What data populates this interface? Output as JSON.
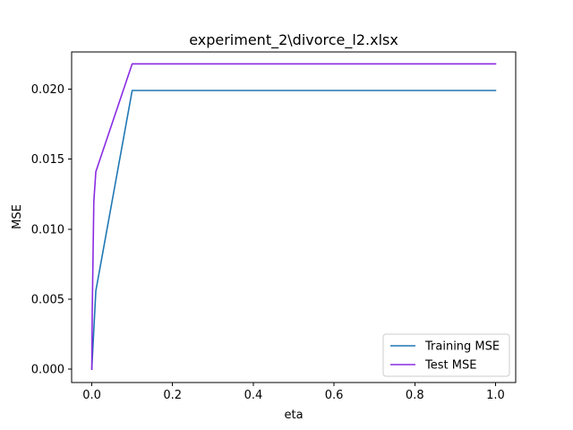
{
  "chart_data": {
    "type": "line",
    "title": "experiment_2\\divorce_l2.xlsx",
    "xlabel": "eta",
    "ylabel": "MSE",
    "xlim": [
      -0.05,
      1.05
    ],
    "ylim": [
      -0.00095,
      0.02265
    ],
    "xticks": [
      0.0,
      0.2,
      0.4,
      0.6,
      0.8,
      1.0
    ],
    "xtick_labels": [
      "0.0",
      "0.2",
      "0.4",
      "0.6",
      "0.8",
      "1.0"
    ],
    "yticks": [
      0.0,
      0.005,
      0.01,
      0.015,
      0.02
    ],
    "ytick_labels": [
      "0.000",
      "0.005",
      "0.010",
      "0.015",
      "0.020"
    ],
    "grid": false,
    "legend_position": "lower-right",
    "series": [
      {
        "name": "Training MSE",
        "color": "#1f77b4",
        "x": [
          0.0,
          0.0001,
          0.001,
          0.01,
          0.1,
          1.0
        ],
        "y": [
          0.0,
          0.0001,
          0.0006,
          0.0056,
          0.0199,
          0.0199
        ]
      },
      {
        "name": "Test MSE",
        "color": "#8a2be2",
        "x": [
          0.0,
          0.0001,
          0.001,
          0.005,
          0.01,
          0.1,
          1.0
        ],
        "y": [
          0.0,
          0.0004,
          0.004,
          0.012,
          0.0141,
          0.0218,
          0.0218
        ]
      }
    ]
  }
}
